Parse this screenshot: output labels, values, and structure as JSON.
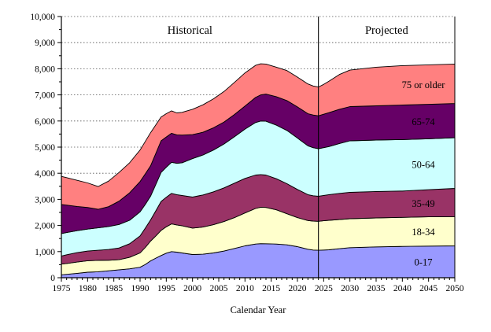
{
  "chart_data": {
    "type": "area",
    "stacked": true,
    "title": "",
    "xlabel": "Calendar Year",
    "ylabel": "",
    "xlim": [
      1975,
      2050
    ],
    "ylim": [
      0,
      10000
    ],
    "x_tick_step": 5,
    "y_tick_step": 1000,
    "y_minor_step": 500,
    "grid": "horizontal-dashed",
    "legend_position": "labels-inside-areas",
    "divider_year": 2024,
    "label_year": 2044,
    "annotations": {
      "historical": "Historical",
      "projected": "Projected"
    },
    "x_tick_labels": [
      "1975",
      "1980",
      "1985",
      "1990",
      "1995",
      "2000",
      "2005",
      "2010",
      "2015",
      "2020",
      "2025",
      "2030",
      "2035",
      "2040",
      "2045",
      "2050"
    ],
    "y_tick_labels": [
      "0",
      "1,000",
      "2,000",
      "3,000",
      "4,000",
      "5,000",
      "6,000",
      "7,000",
      "8,000",
      "9,000",
      "10,000"
    ],
    "x": [
      1975,
      1976,
      1978,
      1980,
      1982,
      1984,
      1986,
      1988,
      1990,
      1991,
      1992,
      1993,
      1994,
      1995,
      1996,
      1997,
      1998,
      2000,
      2002,
      2004,
      2006,
      2008,
      2010,
      2012,
      2013,
      2014,
      2016,
      2018,
      2020,
      2022,
      2023,
      2024,
      2025,
      2026,
      2028,
      2030,
      2035,
      2040,
      2045,
      2050
    ],
    "series": [
      {
        "name": "0-17",
        "color": "#9999FF",
        "label_color": "#000000",
        "values": [
          110,
          130,
          170,
          210,
          230,
          265,
          305,
          340,
          400,
          510,
          645,
          750,
          850,
          940,
          1000,
          980,
          950,
          890,
          900,
          950,
          1020,
          1120,
          1220,
          1290,
          1305,
          1300,
          1290,
          1260,
          1190,
          1090,
          1060,
          1050,
          1060,
          1070,
          1110,
          1150,
          1180,
          1200,
          1210,
          1220
        ]
      },
      {
        "name": "18-34",
        "color": "#FFFFCC",
        "label_color": "#000000",
        "values": [
          410,
          415,
          430,
          440,
          435,
          405,
          385,
          440,
          550,
          650,
          755,
          850,
          960,
          1010,
          1060,
          1040,
          1040,
          1010,
          1040,
          1080,
          1130,
          1180,
          1260,
          1360,
          1395,
          1390,
          1310,
          1190,
          1110,
          1100,
          1110,
          1110,
          1120,
          1130,
          1120,
          1110,
          1110,
          1110,
          1120,
          1120
        ]
      },
      {
        "name": "35-49",
        "color": "#993366",
        "label_color": "#FFFFFF",
        "values": [
          310,
          335,
          360,
          370,
          385,
          410,
          450,
          520,
          650,
          740,
          810,
          960,
          1110,
          1130,
          1170,
          1160,
          1160,
          1190,
          1230,
          1260,
          1290,
          1320,
          1320,
          1280,
          1250,
          1240,
          1190,
          1150,
          1080,
          990,
          970,
          960,
          970,
          980,
          1000,
          1010,
          1010,
          1010,
          1040,
          1080
        ]
      },
      {
        "name": "50-64",
        "color": "#CCFFFF",
        "label_color": "#000000",
        "values": [
          860,
          850,
          840,
          840,
          860,
          880,
          900,
          900,
          920,
          910,
          910,
          1010,
          1110,
          1150,
          1190,
          1200,
          1250,
          1470,
          1530,
          1600,
          1680,
          1780,
          1890,
          2010,
          2050,
          2060,
          2050,
          2040,
          1970,
          1870,
          1840,
          1820,
          1830,
          1840,
          1910,
          1970,
          1970,
          1970,
          1950,
          1940
        ]
      },
      {
        "name": "65-74",
        "color": "#660066",
        "label_color": "#FFFFFF",
        "values": [
          1110,
          1050,
          930,
          830,
          710,
          760,
          890,
          1050,
          1160,
          1170,
          1160,
          1190,
          1210,
          1160,
          1110,
          1090,
          1060,
          920,
          870,
          850,
          840,
          850,
          880,
          960,
          1000,
          1040,
          1090,
          1140,
          1190,
          1230,
          1250,
          1260,
          1280,
          1300,
          1310,
          1310,
          1310,
          1320,
          1320,
          1310
        ]
      },
      {
        "name": "75 or older",
        "color": "#FF8080",
        "label_color": "#000000",
        "values": [
          1080,
          1050,
          1000,
          940,
          870,
          980,
          1100,
          1150,
          1210,
          1240,
          1270,
          1090,
          910,
          890,
          860,
          840,
          870,
          970,
          1050,
          1110,
          1170,
          1230,
          1270,
          1230,
          1190,
          1150,
          1130,
          1150,
          1140,
          1140,
          1110,
          1100,
          1140,
          1200,
          1330,
          1400,
          1480,
          1510,
          1510,
          1510
        ]
      }
    ],
    "styles": {
      "gridline_color": "#555555",
      "axis_color": "#000000",
      "outline_color": "#000000",
      "background": "#FFFFFF"
    }
  }
}
